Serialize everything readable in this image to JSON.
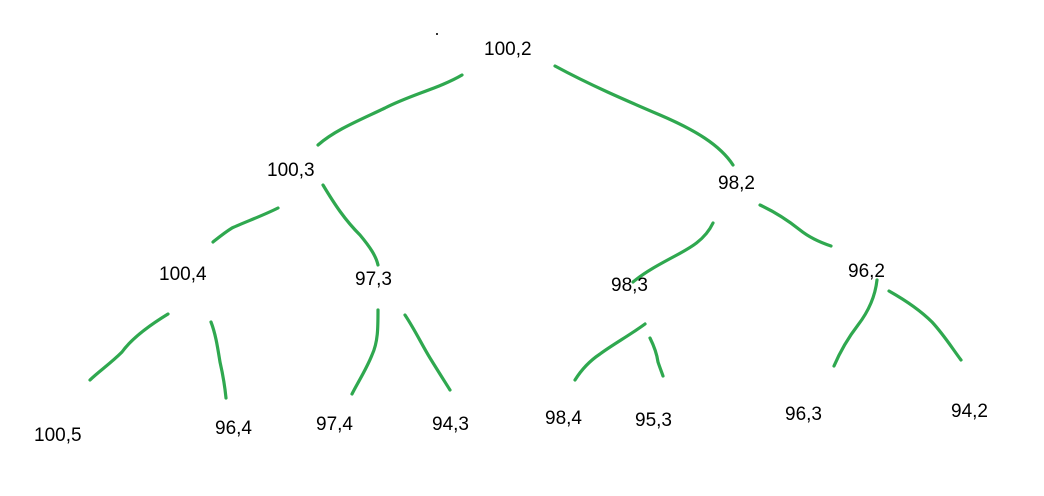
{
  "colors": {
    "edge": "#2fa84f",
    "text": "#000000",
    "background": "#ffffff"
  },
  "tree": {
    "root": "100,2",
    "level1": [
      "100,3",
      "98,2"
    ],
    "level2": [
      "100,4",
      "97,3",
      "98,3",
      "96,2"
    ],
    "level3": [
      "100,5",
      "96,4",
      "97,4",
      "94,3",
      "98,4",
      "95,3",
      "96,3",
      "94,2"
    ]
  }
}
